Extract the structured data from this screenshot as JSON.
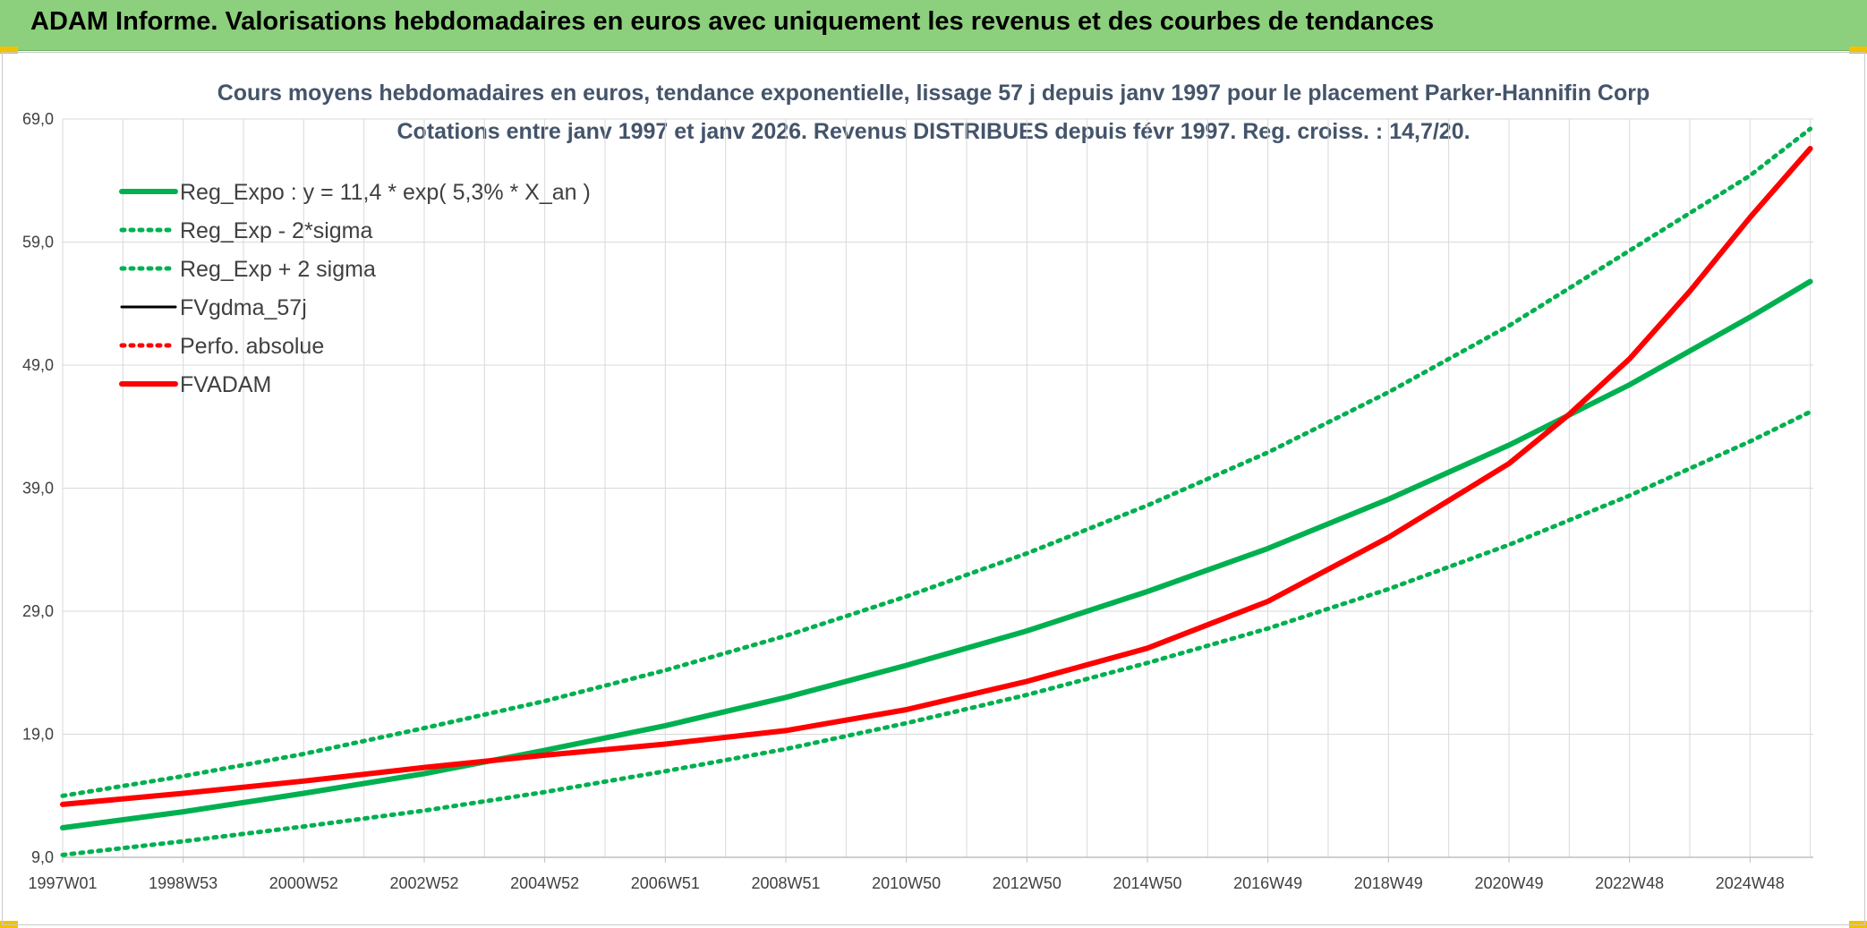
{
  "banner": {
    "title": "ADAM Informe. Valorisations hebdomadaires en euros avec uniquement les revenus et des courbes de tendances"
  },
  "colors": {
    "green": "#00b050",
    "red": "#ff0000",
    "black": "#000000",
    "banner": "#8ccf7c",
    "title": "#44546a"
  },
  "chart_data": {
    "type": "line",
    "title": "Cours moyens hebdomadaires en euros, tendance exponentielle, lissage 57 j depuis janv 1997 pour le placement Parker-Hannifin Corp",
    "subtitle": "Cotations entre janv 1997 et janv 2026. Revenus DISTRIBUES depuis févr 1997. Reg. croiss. : 14,7/20.",
    "xlabel": "",
    "ylabel": "",
    "x_range": [
      1997.0,
      2026.05
    ],
    "ylim": [
      9.0,
      69.0
    ],
    "y_ticks": [
      9.0,
      19.0,
      29.0,
      39.0,
      49.0,
      59.0,
      69.0
    ],
    "y_tick_labels": [
      "9,0",
      "19,0",
      "29,0",
      "39,0",
      "49,0",
      "59,0",
      "69,0"
    ],
    "x_ticks": [
      1997.0,
      1999.0,
      2001.0,
      2003.0,
      2005.0,
      2007.0,
      2009.0,
      2011.0,
      2013.0,
      2015.0,
      2017.0,
      2019.0,
      2021.0,
      2023.0,
      2025.0
    ],
    "x_tick_labels": [
      "1997W01",
      "1998W53",
      "2000W52",
      "2002W52",
      "2004W52",
      "2006W51",
      "2008W51",
      "2010W50",
      "2012W50",
      "2014W50",
      "2016W49",
      "2018W49",
      "2020W49",
      "2022W48",
      "2024W48"
    ],
    "grid": true,
    "legend_position": "top-left",
    "series": [
      {
        "name": "Reg_Expo : y = 11,4 * exp( 5,3% *  X_an )",
        "color": "#00b050",
        "style": "solid",
        "x": [
          1997.0,
          1999.0,
          2001.0,
          2003.0,
          2005.0,
          2007.0,
          2009.0,
          2011.0,
          2013.0,
          2015.0,
          2017.0,
          2019.0,
          2021.0,
          2023.0,
          2025.0,
          2026.0
        ],
        "values": [
          11.4,
          12.7,
          14.2,
          15.8,
          17.7,
          19.7,
          22.0,
          24.6,
          27.4,
          30.6,
          34.1,
          38.1,
          42.5,
          47.4,
          52.9,
          55.8
        ]
      },
      {
        "name": "Reg_Exp - 2*sigma",
        "color": "#00b050",
        "style": "dotted",
        "x": [
          1997.0,
          1999.0,
          2001.0,
          2003.0,
          2005.0,
          2007.0,
          2009.0,
          2011.0,
          2013.0,
          2015.0,
          2017.0,
          2019.0,
          2021.0,
          2023.0,
          2025.0,
          2026.0
        ],
        "values": [
          9.2,
          10.3,
          11.5,
          12.8,
          14.3,
          16.0,
          17.8,
          19.9,
          22.2,
          24.8,
          27.6,
          30.8,
          34.4,
          38.4,
          42.8,
          45.2
        ]
      },
      {
        "name": "Reg_Exp + 2 sigma",
        "color": "#00b050",
        "style": "dotted",
        "x": [
          1997.0,
          1999.0,
          2001.0,
          2003.0,
          2005.0,
          2007.0,
          2009.0,
          2011.0,
          2013.0,
          2015.0,
          2017.0,
          2019.0,
          2021.0,
          2023.0,
          2025.0,
          2026.0
        ],
        "values": [
          14.0,
          15.6,
          17.4,
          19.5,
          21.7,
          24.2,
          27.0,
          30.2,
          33.7,
          37.6,
          41.9,
          46.8,
          52.2,
          58.3,
          64.4,
          68.2
        ]
      },
      {
        "name": "FVgdma_57j",
        "color": "#000000",
        "style": "solid",
        "x": [
          1997.0,
          1999.0,
          2001.0,
          2003.0,
          2005.0,
          2007.0,
          2009.0,
          2011.0,
          2013.0,
          2015.0,
          2017.0,
          2019.0,
          2020.0,
          2021.0,
          2022.0,
          2023.0,
          2024.0,
          2025.0,
          2026.0
        ],
        "values": [
          13.3,
          14.2,
          15.2,
          16.3,
          17.3,
          18.2,
          19.3,
          21.0,
          23.3,
          26.0,
          29.8,
          35.0,
          38.0,
          41.0,
          45.0,
          49.5,
          55.0,
          61.0,
          66.6
        ]
      },
      {
        "name": "Perfo. absolue",
        "color": "#ff0000",
        "style": "dotted",
        "x": [
          1997.0,
          1999.0,
          2001.0,
          2003.0,
          2005.0,
          2007.0,
          2009.0,
          2011.0,
          2013.0,
          2015.0,
          2017.0,
          2019.0,
          2020.0,
          2021.0,
          2022.0,
          2023.0,
          2024.0,
          2025.0,
          2026.0
        ],
        "values": [
          13.3,
          14.2,
          15.2,
          16.3,
          17.3,
          18.2,
          19.3,
          21.0,
          23.3,
          26.0,
          29.8,
          35.0,
          38.0,
          41.0,
          45.0,
          49.5,
          55.0,
          61.0,
          66.6
        ]
      },
      {
        "name": "FVADAM",
        "color": "#ff0000",
        "style": "solid",
        "x": [
          1997.0,
          1999.0,
          2001.0,
          2003.0,
          2005.0,
          2007.0,
          2009.0,
          2011.0,
          2013.0,
          2015.0,
          2017.0,
          2019.0,
          2020.0,
          2021.0,
          2022.0,
          2023.0,
          2024.0,
          2025.0,
          2026.0
        ],
        "values": [
          13.3,
          14.2,
          15.2,
          16.3,
          17.3,
          18.2,
          19.3,
          21.0,
          23.3,
          26.0,
          29.8,
          35.0,
          38.0,
          41.0,
          45.0,
          49.5,
          55.0,
          61.0,
          66.6
        ]
      }
    ]
  }
}
